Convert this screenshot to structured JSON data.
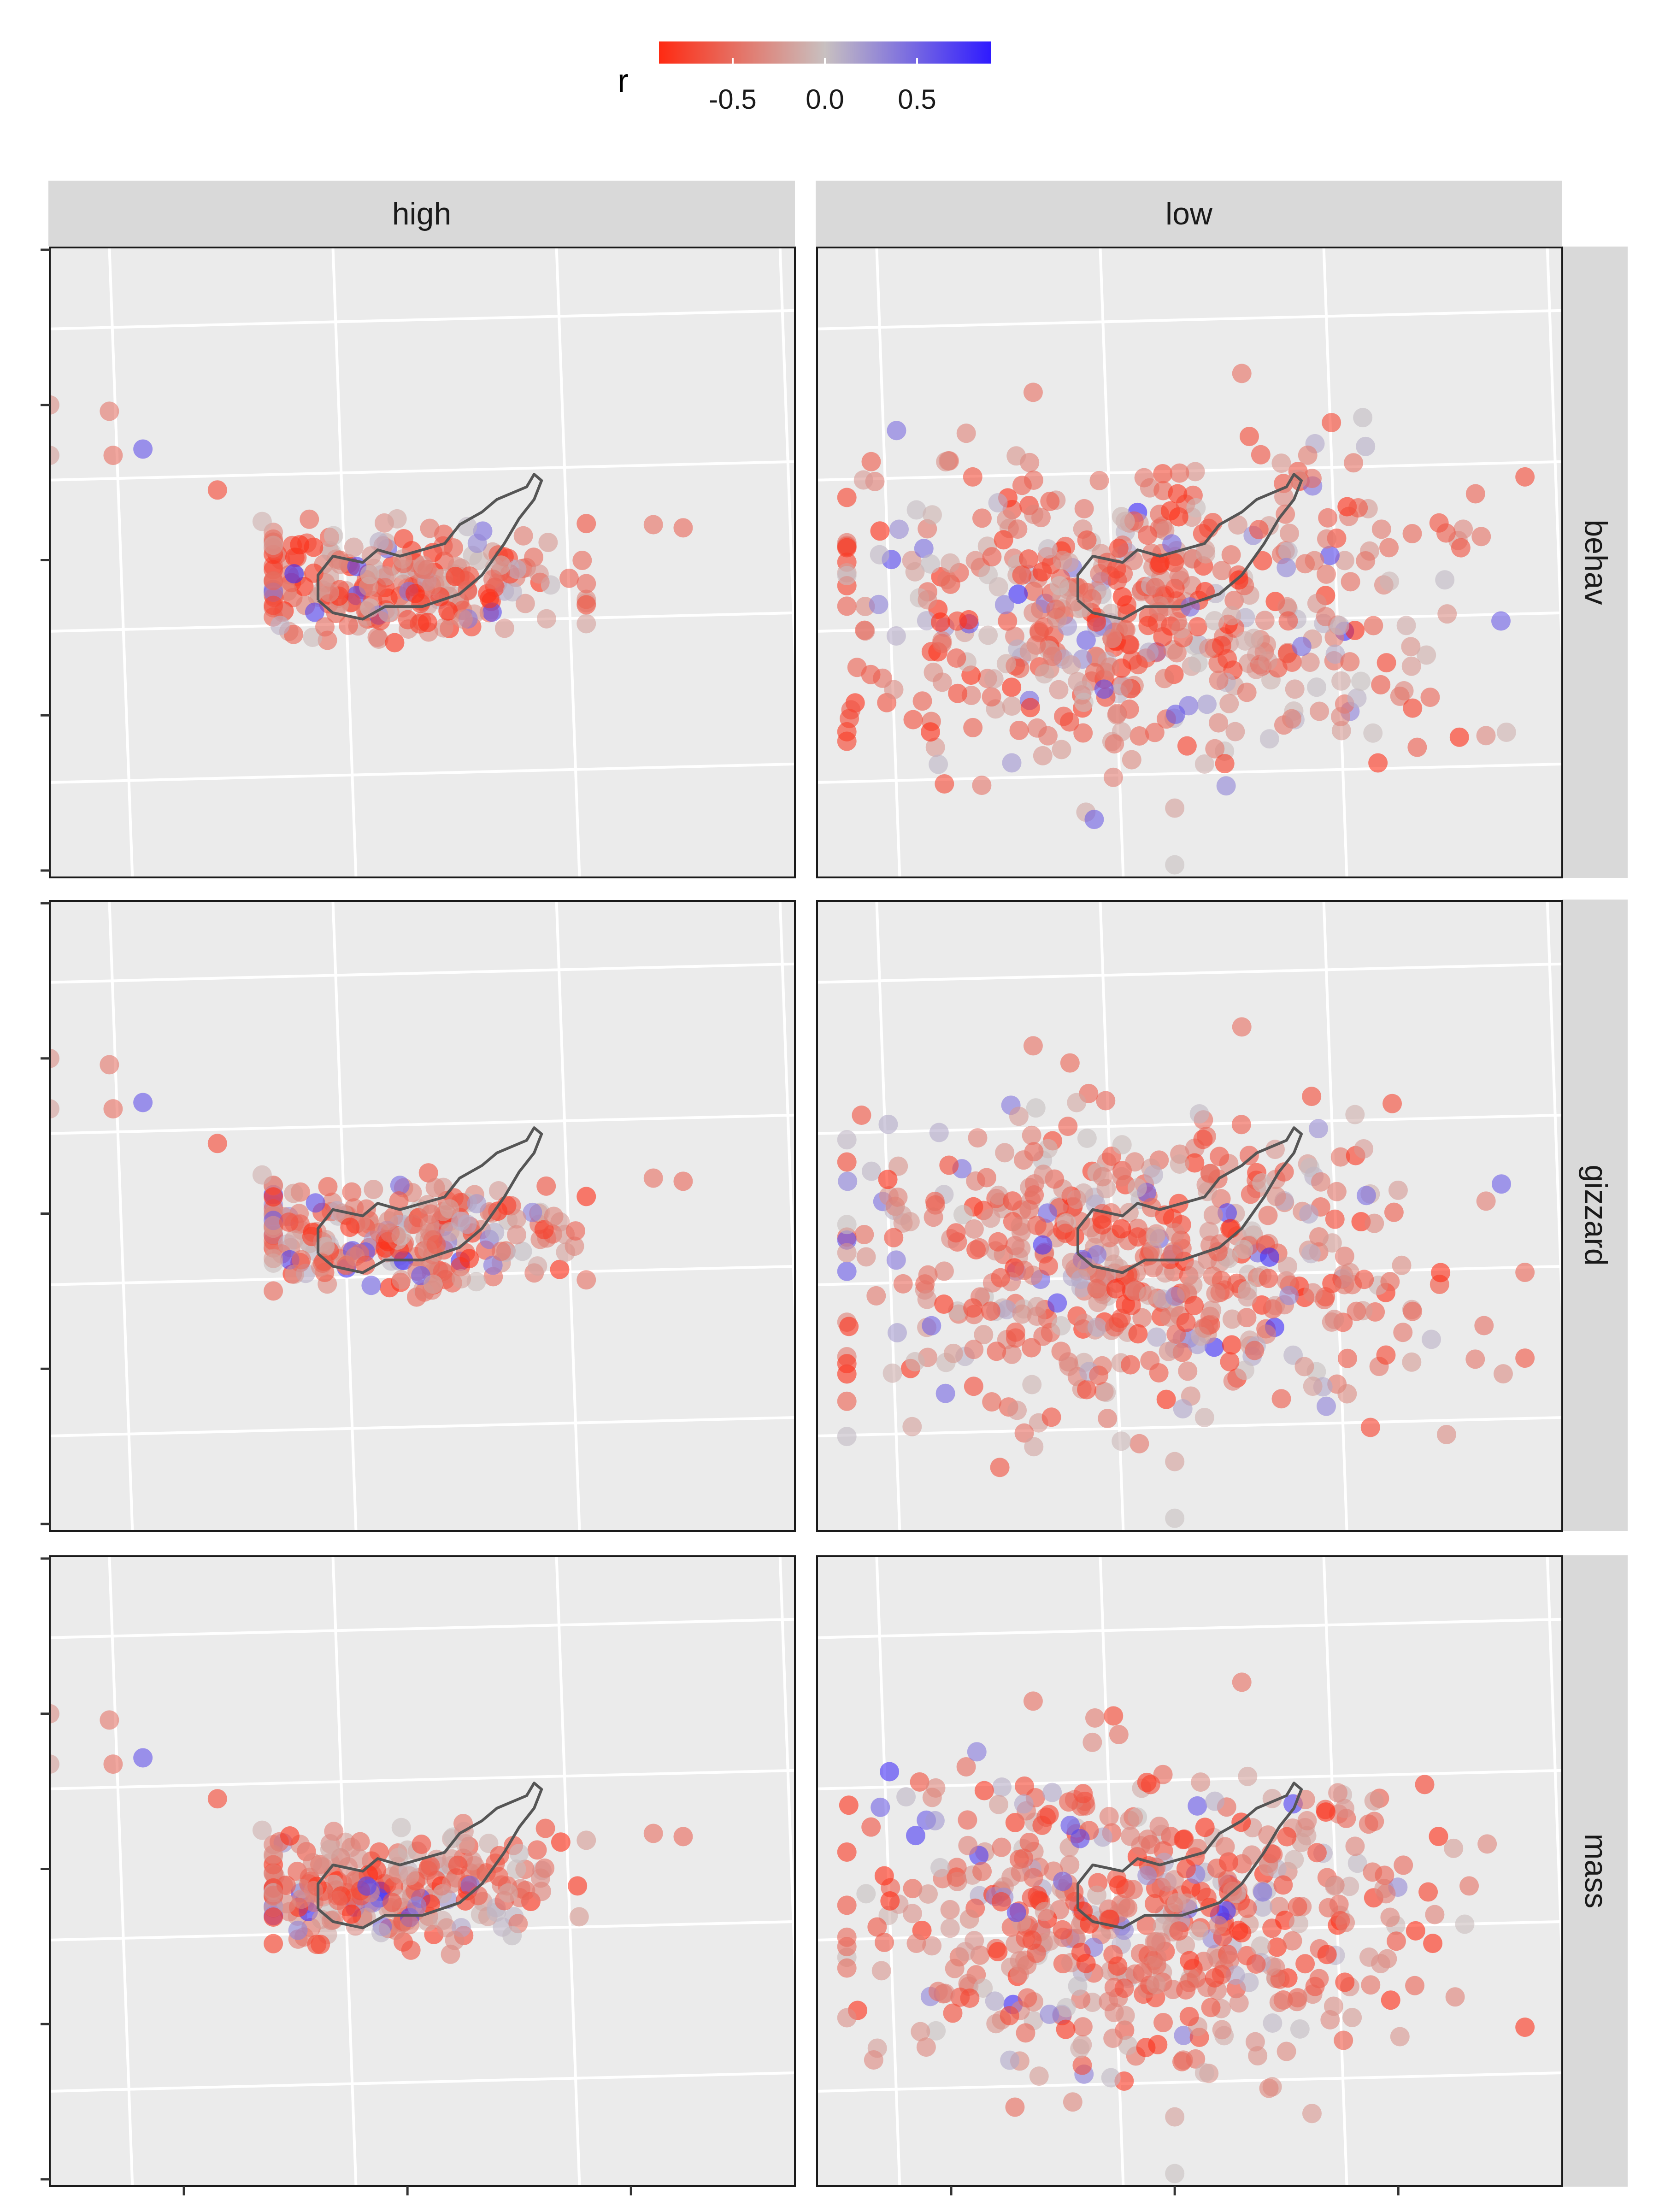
{
  "chart_data": {
    "type": "scatter",
    "title": "",
    "xlabel": "",
    "ylabel": "",
    "facets": {
      "columns": [
        "high",
        "low"
      ],
      "rows": [
        "behav",
        "gizzard",
        "mass"
      ]
    },
    "x_axis": {
      "tick_labels_shown": false,
      "tick_count": 3
    },
    "y_axis": {
      "tick_labels_shown": false,
      "tick_count": 5
    },
    "grid": true,
    "legend": {
      "title": "r",
      "position": "top",
      "type": "colorbar",
      "ticks": [
        "-0.5",
        "0.0",
        "0.5"
      ],
      "tick_values": [
        -0.5,
        0.0,
        0.5
      ],
      "range": [
        -0.9,
        0.9
      ],
      "colors": {
        "low": "#ff2a12",
        "mid": "#c8c0c0",
        "high": "#2f1bff"
      }
    },
    "outline_color": "#555555",
    "panel_background": "#ebebeb",
    "strip_background": "#d9d9d9",
    "point_alpha": 0.6,
    "clouds": {
      "high": {
        "main": {
          "count": 230,
          "x_mean": 0.47,
          "y_mean": 0.53,
          "x_spread": 0.12,
          "y_spread": 0.045,
          "x_range": [
            0.3,
            0.72
          ],
          "y_range": [
            0.36,
            0.66
          ]
        },
        "stragglers": [
          {
            "x": 0.0,
            "y": 0.33,
            "r": -0.2
          },
          {
            "x": 0.0,
            "y": 0.25,
            "r": -0.3
          },
          {
            "x": 0.08,
            "y": 0.26,
            "r": -0.45
          },
          {
            "x": 0.085,
            "y": 0.33,
            "r": -0.5
          },
          {
            "x": 0.125,
            "y": 0.32,
            "r": 0.6
          },
          {
            "x": 0.225,
            "y": 0.385,
            "r": -0.75
          },
          {
            "x": 0.285,
            "y": 0.435,
            "r": -0.1
          },
          {
            "x": 0.81,
            "y": 0.44,
            "r": -0.5
          },
          {
            "x": 0.85,
            "y": 0.445,
            "r": -0.55
          }
        ]
      },
      "low": {
        "main": {
          "count": 520,
          "x_mean": 0.43,
          "y_mean": 0.58,
          "x_spread": 0.2,
          "y_spread": 0.12,
          "x_range": [
            0.04,
            0.95
          ],
          "y_range": [
            0.2,
            0.98
          ]
        },
        "stragglers": [
          {
            "x": 0.48,
            "y": 0.89,
            "r": -0.2
          },
          {
            "x": 0.48,
            "y": 0.98,
            "r": 0.0
          },
          {
            "x": 0.52,
            "y": 0.82,
            "r": -0.1
          },
          {
            "x": 0.29,
            "y": 0.23,
            "r": -0.5
          },
          {
            "x": 0.57,
            "y": 0.2,
            "r": -0.5
          }
        ]
      }
    },
    "outline": {
      "high": [
        [
          0.36,
          0.56
        ],
        [
          0.36,
          0.52
        ],
        [
          0.38,
          0.49
        ],
        [
          0.42,
          0.5
        ],
        [
          0.44,
          0.48
        ],
        [
          0.47,
          0.49
        ],
        [
          0.5,
          0.48
        ],
        [
          0.53,
          0.47
        ],
        [
          0.55,
          0.44
        ],
        [
          0.58,
          0.42
        ],
        [
          0.6,
          0.4
        ],
        [
          0.62,
          0.39
        ],
        [
          0.64,
          0.38
        ],
        [
          0.65,
          0.36
        ],
        [
          0.66,
          0.37
        ],
        [
          0.65,
          0.4
        ],
        [
          0.63,
          0.43
        ],
        [
          0.61,
          0.47
        ],
        [
          0.58,
          0.52
        ],
        [
          0.55,
          0.55
        ],
        [
          0.5,
          0.57
        ],
        [
          0.45,
          0.57
        ],
        [
          0.42,
          0.59
        ],
        [
          0.38,
          0.58
        ],
        [
          0.36,
          0.56
        ]
      ],
      "low": [
        [
          0.35,
          0.56
        ],
        [
          0.35,
          0.52
        ],
        [
          0.37,
          0.49
        ],
        [
          0.41,
          0.5
        ],
        [
          0.43,
          0.48
        ],
        [
          0.46,
          0.49
        ],
        [
          0.49,
          0.48
        ],
        [
          0.52,
          0.47
        ],
        [
          0.54,
          0.44
        ],
        [
          0.57,
          0.42
        ],
        [
          0.59,
          0.4
        ],
        [
          0.61,
          0.39
        ],
        [
          0.63,
          0.38
        ],
        [
          0.64,
          0.36
        ],
        [
          0.65,
          0.37
        ],
        [
          0.64,
          0.4
        ],
        [
          0.62,
          0.43
        ],
        [
          0.6,
          0.47
        ],
        [
          0.57,
          0.52
        ],
        [
          0.54,
          0.55
        ],
        [
          0.49,
          0.57
        ],
        [
          0.44,
          0.57
        ],
        [
          0.41,
          0.59
        ],
        [
          0.37,
          0.58
        ],
        [
          0.35,
          0.56
        ]
      ]
    }
  }
}
